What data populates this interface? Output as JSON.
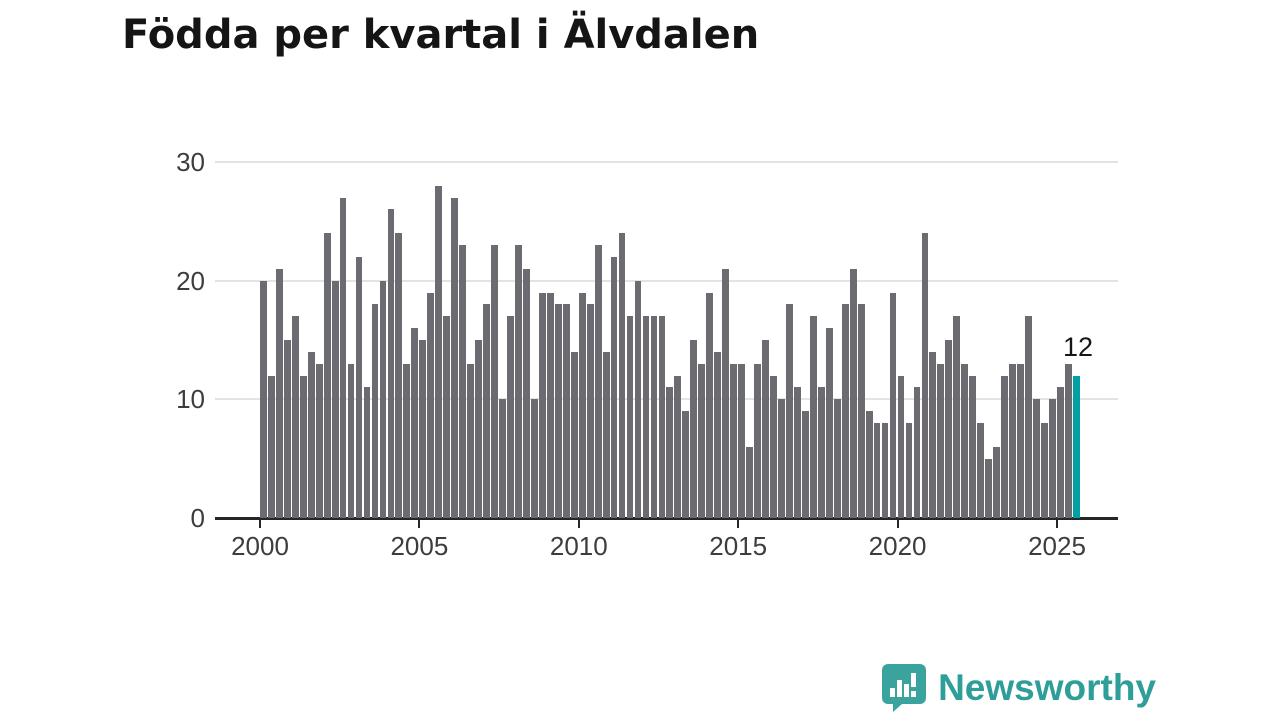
{
  "title": "Födda per kvartal i Älvdalen",
  "chart_data": {
    "type": "bar",
    "title": "Födda per kvartal i Älvdalen",
    "x_start_quarter": "2000-Q1",
    "x_end_quarter": "2025-Q3",
    "values": [
      20,
      12,
      21,
      15,
      17,
      12,
      14,
      13,
      24,
      20,
      27,
      13,
      22,
      11,
      18,
      20,
      26,
      24,
      13,
      16,
      15,
      19,
      28,
      17,
      27,
      23,
      13,
      15,
      18,
      23,
      10,
      17,
      23,
      21,
      10,
      19,
      19,
      18,
      18,
      14,
      19,
      18,
      23,
      14,
      22,
      24,
      17,
      20,
      17,
      17,
      17,
      11,
      12,
      9,
      15,
      13,
      19,
      14,
      21,
      13,
      13,
      6,
      13,
      15,
      12,
      10,
      18,
      11,
      9,
      17,
      11,
      16,
      10,
      18,
      21,
      18,
      9,
      8,
      8,
      19,
      12,
      8,
      11,
      24,
      14,
      13,
      15,
      17,
      13,
      12,
      8,
      5,
      6,
      12,
      13,
      13,
      17,
      10,
      8,
      10,
      11,
      13,
      12
    ],
    "highlight_index": 102,
    "highlight_value_label": "12",
    "ylim": [
      0,
      30
    ],
    "yticks": [
      "0",
      "10",
      "20",
      "30"
    ],
    "xticks": [
      "2000",
      "2005",
      "2010",
      "2015",
      "2020",
      "2025"
    ],
    "grid": true,
    "legend": "none",
    "bar_color": "#6b6b71",
    "highlight_color": "#00a0a4",
    "grid_color": "#e3e3e3",
    "axis_color": "#262626"
  },
  "branding": {
    "logo_text": "Newsworthy",
    "logo_color": "#2f9e99",
    "icon_name": "newsworthy-speech-bubble-chart-icon"
  }
}
